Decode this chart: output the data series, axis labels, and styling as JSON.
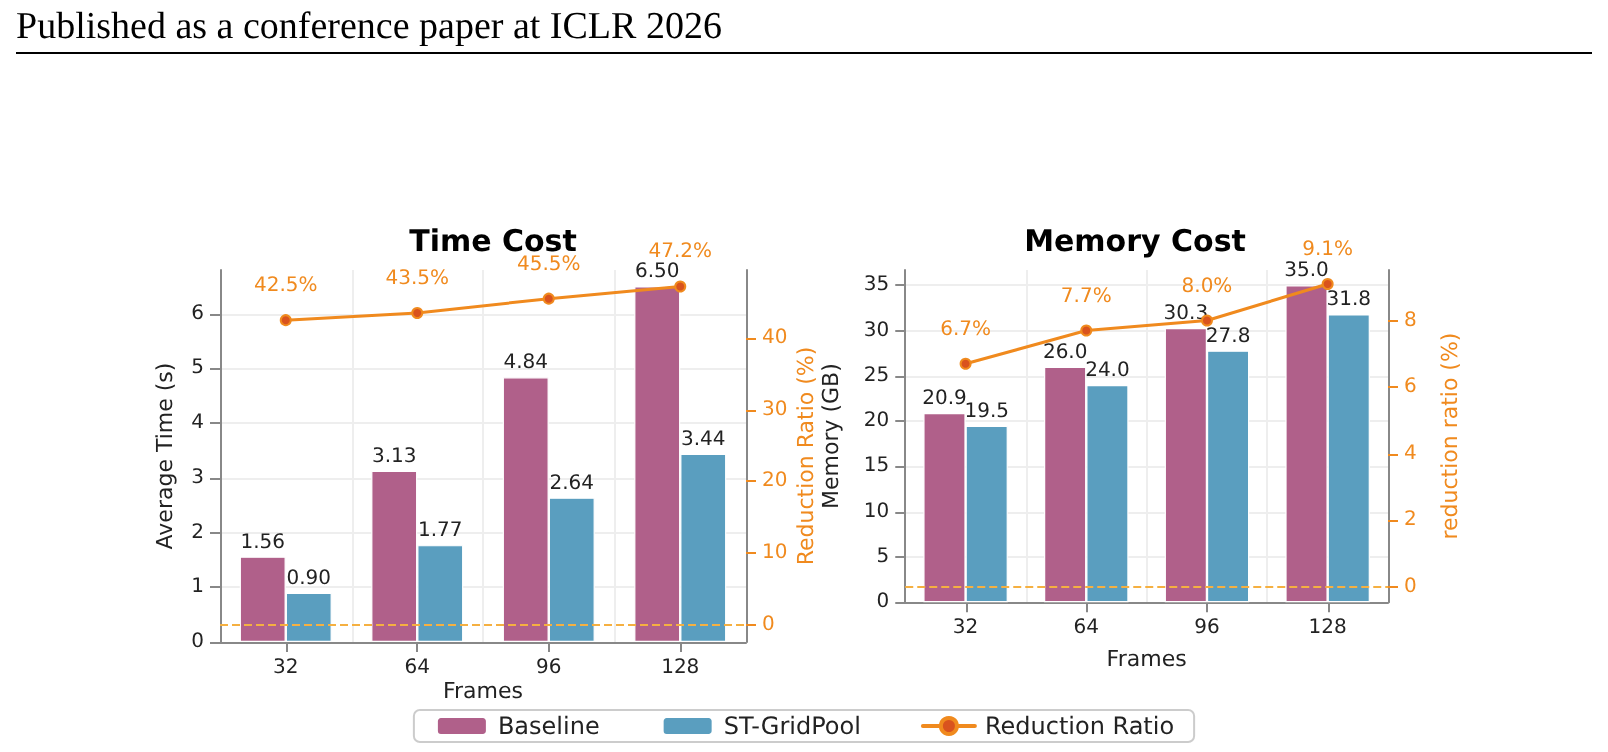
{
  "chart_data": [
    {
      "type": "bar",
      "title": "Time Cost",
      "xlabel": "Frames",
      "ylabel": "Average Time (s)",
      "y2label": "Reduction Ratio (%)",
      "annotations": [
        "Published as a conference paper at ICLR 2026"
      ],
      "categories": [
        "32",
        "64",
        "96",
        "128"
      ],
      "series": [
        {
          "name": "Baseline",
          "color": "#b0608a",
          "values": [
            1.56,
            3.13,
            4.84,
            6.5
          ],
          "value_labels": [
            "1.56",
            "3.13",
            "4.84",
            "6.50"
          ]
        },
        {
          "name": "ST-GridPool",
          "color": "#5a9ebf",
          "values": [
            0.9,
            1.77,
            2.64,
            3.44
          ],
          "value_labels": [
            "0.90",
            "1.77",
            "2.64",
            "3.44"
          ]
        },
        {
          "name": "Reduction Ratio",
          "type": "line",
          "axis": "y2",
          "color": "#f08a1e",
          "values": [
            42.5,
            43.5,
            45.5,
            47.2
          ],
          "value_labels": [
            "42.5%",
            "43.5%",
            "45.5%",
            "47.2%"
          ]
        }
      ],
      "ylim": [
        0,
        6.8
      ],
      "yticks": [
        0,
        1,
        2,
        3,
        4,
        5,
        6
      ],
      "y2lim": [
        -2.4,
        49.5
      ],
      "y2ticks": [
        0,
        10,
        20,
        30,
        40
      ],
      "ref_lines": [
        {
          "axis": "y2",
          "value": 0,
          "color": "#f5b041",
          "line_style": "dashed"
        }
      ],
      "grid": true,
      "legend": "bottom",
      "marker": "circle",
      "line_style": "solid"
    },
    {
      "type": "bar",
      "title": "Memory Cost",
      "xlabel": "Frames",
      "ylabel": "Memory (GB)",
      "y2label": "reduction ratio (%)",
      "categories": [
        "32",
        "64",
        "96",
        "128"
      ],
      "series": [
        {
          "color": "#b0608a",
          "values": [
            20.9,
            26.0,
            30.3,
            35.0
          ],
          "value_labels": [
            "20.9",
            "26.0",
            "30.3",
            "35.0"
          ]
        },
        {
          "color": "#5a9ebf",
          "values": [
            19.5,
            24.0,
            27.8,
            31.8
          ],
          "value_labels": [
            "19.5",
            "24.0",
            "27.8",
            "31.8"
          ]
        },
        {
          "type": "line",
          "axis": "y2",
          "color": "#f08a1e",
          "values": [
            6.7,
            7.7,
            8.0,
            9.1
          ],
          "value_labels": [
            "6.7%",
            "7.7%",
            "8.0%",
            "9.1%"
          ]
        }
      ],
      "ylim": [
        0,
        36.7
      ],
      "yticks": [
        0,
        5,
        10,
        15,
        20,
        25,
        30,
        35
      ],
      "y2lim": [
        -0.47,
        9.52
      ],
      "y2ticks": [
        0,
        2,
        4,
        6,
        8
      ],
      "ref_lines": [
        {
          "axis": "y2",
          "value": 0,
          "color": "#f5b041",
          "line_style": "dashed"
        }
      ],
      "grid": true,
      "marker": "circle",
      "line_style": "solid"
    }
  ]
}
